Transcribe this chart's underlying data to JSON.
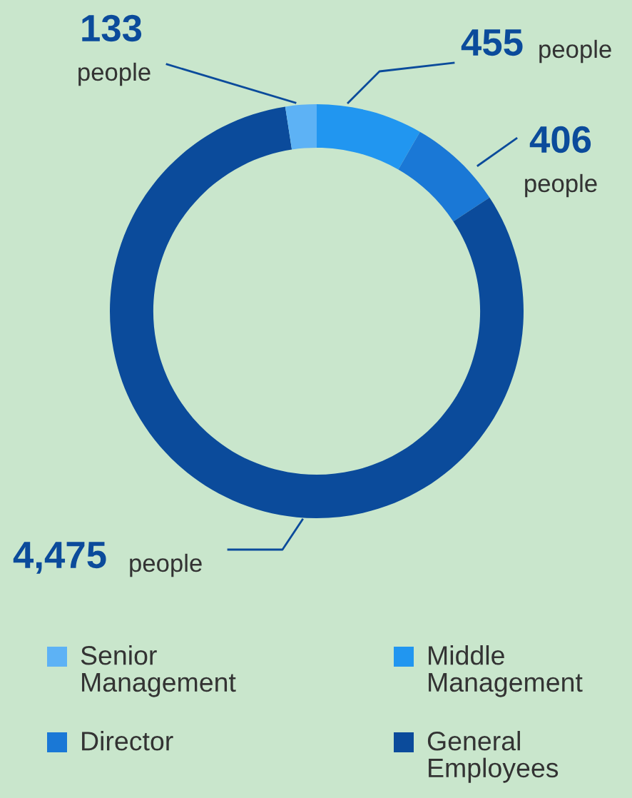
{
  "chart_data": {
    "type": "donut",
    "categories": [
      "Middle Management",
      "Director",
      "General Employees",
      "Senior Management"
    ],
    "values": [
      455,
      406,
      4475,
      133
    ],
    "colors": [
      "#2196f0",
      "#1a78d6",
      "#0b4b9b",
      "#5db2f5"
    ],
    "value_labels": [
      "455 people",
      "406 people",
      "4,475 people",
      "133 people"
    ],
    "legend": "bottom"
  }
}
